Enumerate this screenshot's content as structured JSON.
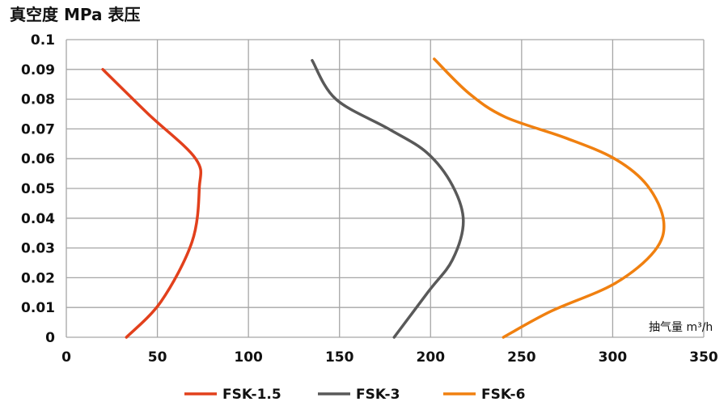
{
  "chart_data": {
    "type": "line",
    "title": "真空度 MPa 表压",
    "xlabel": "抽气量 m³/h",
    "ylabel": "真空度 MPa 表压",
    "xlim": [
      0,
      350
    ],
    "ylim": [
      0,
      0.1
    ],
    "x_ticks": [
      "0",
      "50",
      "100",
      "150",
      "200",
      "250",
      "300",
      "350"
    ],
    "y_ticks": [
      "0",
      "0.01",
      "0.02",
      "0.03",
      "0.04",
      "0.05",
      "0.06",
      "0.07",
      "0.08",
      "0.09",
      "0.1"
    ],
    "grid": true,
    "legend_position": "bottom",
    "series": [
      {
        "name": "FSK-1.5",
        "color": "#e2401c",
        "points": [
          [
            20,
            0.09
          ],
          [
            45,
            0.075
          ],
          [
            71,
            0.06
          ],
          [
            73,
            0.05
          ],
          [
            69,
            0.032
          ],
          [
            52,
            0.012
          ],
          [
            33,
            0
          ]
        ]
      },
      {
        "name": "FSK-3",
        "color": "#595959",
        "points": [
          [
            135,
            0.093
          ],
          [
            148,
            0.08
          ],
          [
            177,
            0.07
          ],
          [
            198,
            0.062
          ],
          [
            212,
            0.051
          ],
          [
            218,
            0.039
          ],
          [
            212,
            0.026
          ],
          [
            199,
            0.0155
          ],
          [
            180,
            0
          ]
        ]
      },
      {
        "name": "FSK-6",
        "color": "#f08010",
        "points": [
          [
            202,
            0.0935
          ],
          [
            221,
            0.082
          ],
          [
            241,
            0.074
          ],
          [
            274,
            0.067
          ],
          [
            301,
            0.06
          ],
          [
            319,
            0.051
          ],
          [
            328,
            0.039
          ],
          [
            323,
            0.029
          ],
          [
            301,
            0.018
          ],
          [
            266,
            0.0087
          ],
          [
            240,
            0
          ]
        ]
      }
    ]
  }
}
